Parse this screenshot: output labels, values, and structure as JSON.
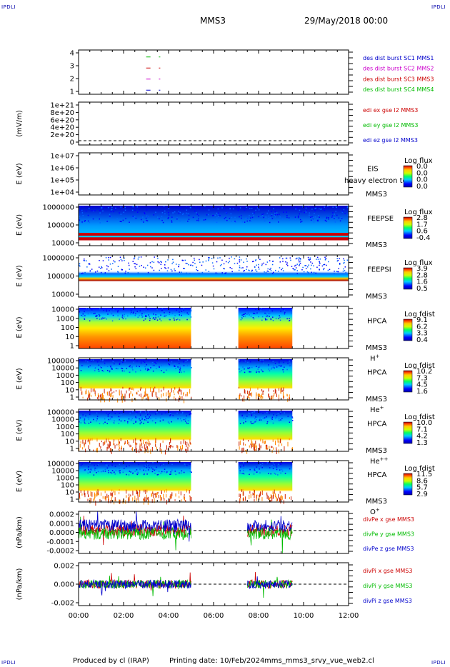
{
  "header": {
    "corner_label": "IPDLI",
    "spacecraft": "MMS3",
    "datetime": "29/May/2018 00:00"
  },
  "footer": {
    "produced_by": "Produced by cl (IRAP)",
    "printing_date": "Printing date: 10/Feb/2024",
    "filename": "mms_mms3_srvy_vue_web2.cl"
  },
  "x_axis": {
    "ticks": [
      "00:00",
      "02:00",
      "04:00",
      "06:00",
      "08:00",
      "10:00",
      "12:00"
    ],
    "range_hours": [
      0,
      12
    ]
  },
  "colors": {
    "blue": "#0000cc",
    "green": "#00bb00",
    "red": "#cc0000",
    "magenta": "#cc00cc",
    "dash": "#000000"
  },
  "chart_data": [
    {
      "type": "scatter",
      "panel": "burst",
      "ylabel": "",
      "yticks": [
        "4",
        "3",
        "2",
        "1"
      ],
      "legend": [
        {
          "label": "des dist burst SC1 MMS1",
          "color": "#0000cc"
        },
        {
          "label": "des dist burst SC2 MMS2",
          "color": "#cc00cc"
        },
        {
          "label": "des dist burst SC3 MMS3",
          "color": "#cc0000"
        },
        {
          "label": "des dist burst SC4 MMS4",
          "color": "#00bb00"
        }
      ],
      "series": [
        {
          "name": "des dist burst SC4 MMS4",
          "y": 4,
          "x": [
            3.1,
            3.6
          ]
        },
        {
          "name": "des dist burst SC3 MMS3",
          "y": 3,
          "x": [
            3.1,
            3.6
          ]
        },
        {
          "name": "des dist burst SC2 MMS2",
          "y": 2,
          "x": [
            3.1,
            3.6
          ]
        },
        {
          "name": "des dist burst SC1 MMS1",
          "y": 1,
          "x": [
            3.1,
            3.6
          ]
        }
      ]
    },
    {
      "type": "line",
      "panel": "edi",
      "ylabel": "(mV/m)",
      "yticks": [
        "1e+21",
        "8e+20",
        "6e+20",
        "4e+20",
        "2e+20",
        "0"
      ],
      "legend": [
        {
          "label": "edi ex gse l2 MMS3",
          "color": "#cc0000"
        },
        {
          "label": "edi ey gse l2 MMS3",
          "color": "#00bb00"
        },
        {
          "label": "edi ez gse l2 MMS3",
          "color": "#0000cc"
        }
      ]
    },
    {
      "type": "heatmap",
      "panel": "eis",
      "ylabel": "E (eV)",
      "yticks": [
        "1e+07",
        "1e+06",
        "1e+05",
        "1e+04"
      ],
      "instrument": "EIS",
      "spacecraft": "MMS3",
      "overlay_text": "heavy electron to",
      "colorbar_title": "Log flux",
      "colorbar_ticks": [
        "0.0",
        "0.0",
        "0.0",
        "0.0"
      ]
    },
    {
      "type": "heatmap",
      "panel": "feepse",
      "ylabel": "E (eV)",
      "yticks": [
        "1000000",
        "100000",
        "10000"
      ],
      "instrument": "FEEPSE",
      "spacecraft": "MMS3",
      "colorbar_title": "Log flux",
      "colorbar_ticks": [
        "2.8",
        "1.7",
        "0.6",
        "-0.4"
      ],
      "coverage_hours": [
        [
          0,
          12
        ]
      ]
    },
    {
      "type": "heatmap",
      "panel": "feepsi",
      "ylabel": "E (eV)",
      "yticks": [
        "1000000",
        "100000",
        "10000"
      ],
      "instrument": "FEEPSI",
      "spacecraft": "MMS3",
      "colorbar_title": "Log flux",
      "colorbar_ticks": [
        "3.9",
        "2.8",
        "1.6",
        "0.5"
      ],
      "coverage_hours": [
        [
          0,
          12
        ]
      ]
    },
    {
      "type": "heatmap",
      "panel": "hpca_h",
      "ylabel": "E (eV)",
      "yticks": [
        "10000",
        "1000",
        "100",
        "10",
        "1"
      ],
      "instrument": "HPCA",
      "spacecraft": "MMS3",
      "species": "H",
      "species_sup": "+",
      "colorbar_title": "Log fdist",
      "colorbar_ticks": [
        "9.1",
        "6.2",
        "3.3",
        "0.4"
      ],
      "coverage_hours": [
        [
          0,
          5.0
        ],
        [
          7.1,
          9.5
        ]
      ]
    },
    {
      "type": "heatmap",
      "panel": "hpca_he",
      "ylabel": "E (eV)",
      "yticks": [
        "100000",
        "10000",
        "1000",
        "100",
        "10",
        "1"
      ],
      "instrument": "HPCA",
      "spacecraft": "MMS3",
      "species": "He",
      "species_sup": "+",
      "colorbar_title": "Log fdist",
      "colorbar_ticks": [
        "10.2",
        "7.3",
        "4.5",
        "1.6"
      ],
      "coverage_hours": [
        [
          0,
          5.0
        ],
        [
          7.1,
          9.5
        ]
      ]
    },
    {
      "type": "heatmap",
      "panel": "hpca_hepp",
      "ylabel": "E (eV)",
      "yticks": [
        "100000",
        "10000",
        "1000",
        "100",
        "10",
        "1"
      ],
      "instrument": "HPCA",
      "spacecraft": "MMS3",
      "species": "He",
      "species_sup": "++",
      "colorbar_title": "Log fdist",
      "colorbar_ticks": [
        "10.0",
        "7.1",
        "4.2",
        "1.3"
      ],
      "coverage_hours": [
        [
          0,
          5.0
        ],
        [
          7.1,
          9.5
        ]
      ]
    },
    {
      "type": "heatmap",
      "panel": "hpca_o",
      "ylabel": "E (eV)",
      "yticks": [
        "100000",
        "10000",
        "1000",
        "100",
        "10",
        "1"
      ],
      "instrument": "HPCA",
      "spacecraft": "MMS3",
      "species": "O",
      "species_sup": "+",
      "colorbar_title": "Log fdist",
      "colorbar_ticks": [
        "11.5",
        "8.6",
        "5.7",
        "2.9"
      ],
      "coverage_hours": [
        [
          0,
          5.0
        ],
        [
          7.1,
          9.5
        ]
      ]
    },
    {
      "type": "line",
      "panel": "divpe",
      "ylabel": "(nPa/km)",
      "yticks": [
        "0.0002",
        "0.0001",
        "0.0000",
        "-0.0001",
        "-0.0002"
      ],
      "ylim": [
        -0.0003,
        0.00025
      ],
      "legend": [
        {
          "label": "divPe x gse MMS3",
          "color": "#cc0000"
        },
        {
          "label": "divPe y gse MMS3",
          "color": "#00bb00"
        },
        {
          "label": "divPe z gse MMS3",
          "color": "#0000cc"
        }
      ],
      "coverage_hours": [
        [
          0,
          5.0
        ],
        [
          7.5,
          9.5
        ]
      ]
    },
    {
      "type": "line",
      "panel": "divpi",
      "ylabel": "(nPa/km)",
      "yticks": [
        "0.002",
        "0.000",
        "-0.002"
      ],
      "ylim": [
        -0.003,
        0.003
      ],
      "legend": [
        {
          "label": "divPi x gse MMS3",
          "color": "#cc0000"
        },
        {
          "label": "divPi y gse MMS3",
          "color": "#00bb00"
        },
        {
          "label": "divPi z gse MMS3",
          "color": "#0000cc"
        }
      ],
      "coverage_hours": [
        [
          0,
          5.0
        ],
        [
          7.5,
          9.5
        ]
      ]
    }
  ]
}
